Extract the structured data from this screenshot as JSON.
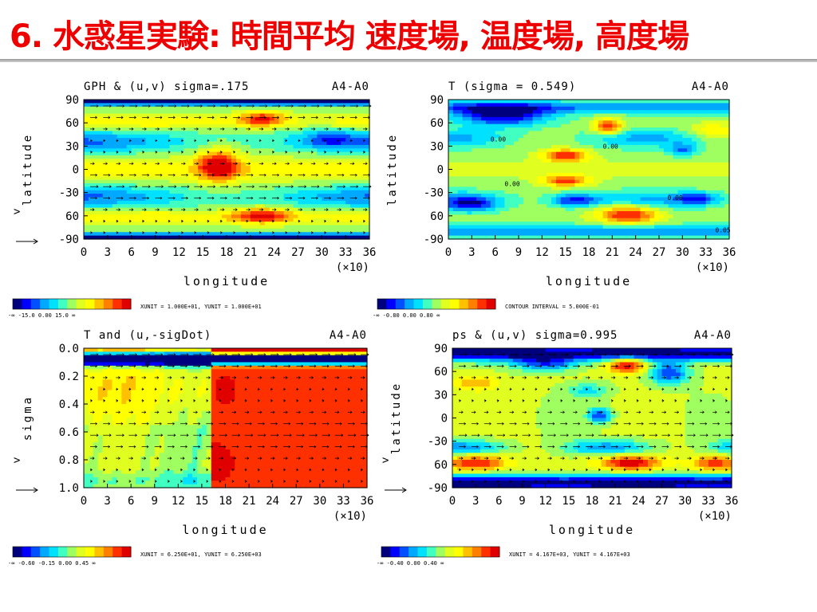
{
  "slide": {
    "title": "6. 水惑星実験: 時間平均 速度場, 温度場, 高度場"
  },
  "chart_data": [
    {
      "type": "heatmap",
      "title_left": "GPH & (u,v) sigma=.175",
      "title_right": "A4-A0",
      "xlabel": "longitude",
      "ylabel": "latitude",
      "x_multiplier": "(×10)",
      "xticks": [
        "0",
        "3",
        "6",
        "9",
        "12",
        "15",
        "18",
        "21",
        "24",
        "27",
        "30",
        "33",
        "36"
      ],
      "yticks": [
        "90",
        "60",
        "30",
        "0",
        "-30",
        "60",
        "-90"
      ],
      "colorbar_labels": "-∞  -15.0 0.00 15.0  ∞",
      "footer": "XUNIT = 1.000E+01, YUNIT = 1.000E+01",
      "vector_ref": ">",
      "xlim": [
        0,
        36
      ],
      "ylim": [
        -90,
        90
      ]
    },
    {
      "type": "heatmap",
      "title_left": "T (sigma = 0.549)",
      "title_right": "A4-A0",
      "xlabel": "longitude",
      "ylabel": "latitude",
      "x_multiplier": "(×10)",
      "xticks": [
        "0",
        "3",
        "6",
        "9",
        "12",
        "15",
        "18",
        "21",
        "24",
        "27",
        "30",
        "33",
        "36"
      ],
      "yticks": [
        "90",
        "60",
        "30",
        "0",
        "-30",
        "60",
        "-90"
      ],
      "colorbar_labels": "-∞  -0.80 0.00 0.80  ∞",
      "footer": "CONTOUR INTERVAL = 5.000E-01",
      "contour_labels": [
        "0.00",
        "0.00",
        "0.00",
        "0.00",
        "0.05"
      ],
      "xlim": [
        0,
        36
      ],
      "ylim": [
        -90,
        90
      ]
    },
    {
      "type": "heatmap",
      "title_left": "T and (u,-sigDot)",
      "title_right": "A4-A0",
      "xlabel": "longitude",
      "ylabel": "sigma",
      "x_multiplier": "(×10)",
      "xticks": [
        "0",
        "3",
        "6",
        "9",
        "12",
        "15",
        "18",
        "21",
        "24",
        "27",
        "30",
        "33",
        "36"
      ],
      "yticks": [
        "0.0",
        "0.2",
        "0.4",
        "0.6",
        "0.8",
        "1.0"
      ],
      "colorbar_labels": "-∞  -0.60 -0.15 0.00 0.45  ∞",
      "footer": "XUNIT = 6.250E+01, YUNIT = 6.250E+03",
      "vector_ref": ">",
      "xlim": [
        0,
        36
      ],
      "ylim": [
        0,
        1
      ]
    },
    {
      "type": "heatmap",
      "title_left": "ps & (u,v) sigma=0.995",
      "title_right": "A4-A0",
      "xlabel": "longitude",
      "ylabel": "latitude",
      "x_multiplier": "(×10)",
      "xticks": [
        "0",
        "3",
        "6",
        "9",
        "12",
        "15",
        "18",
        "21",
        "24",
        "27",
        "30",
        "33",
        "36"
      ],
      "yticks": [
        "90",
        "60",
        "30",
        "0",
        "-30",
        "60",
        "-90"
      ],
      "colorbar_labels": "-∞  -0.40 0.00 0.40  ∞",
      "footer": "XUNIT = 4.167E+03, YUNIT = 4.167E+03",
      "vector_ref": ">",
      "xlim": [
        0,
        36
      ],
      "ylim": [
        -90,
        90
      ]
    }
  ],
  "palette": [
    "#00007f",
    "#0000ff",
    "#0050ff",
    "#00a8ff",
    "#00e0ff",
    "#40ffc0",
    "#a0ff60",
    "#e0ff20",
    "#ffff00",
    "#ffc000",
    "#ff8000",
    "#ff3000",
    "#e00000"
  ]
}
